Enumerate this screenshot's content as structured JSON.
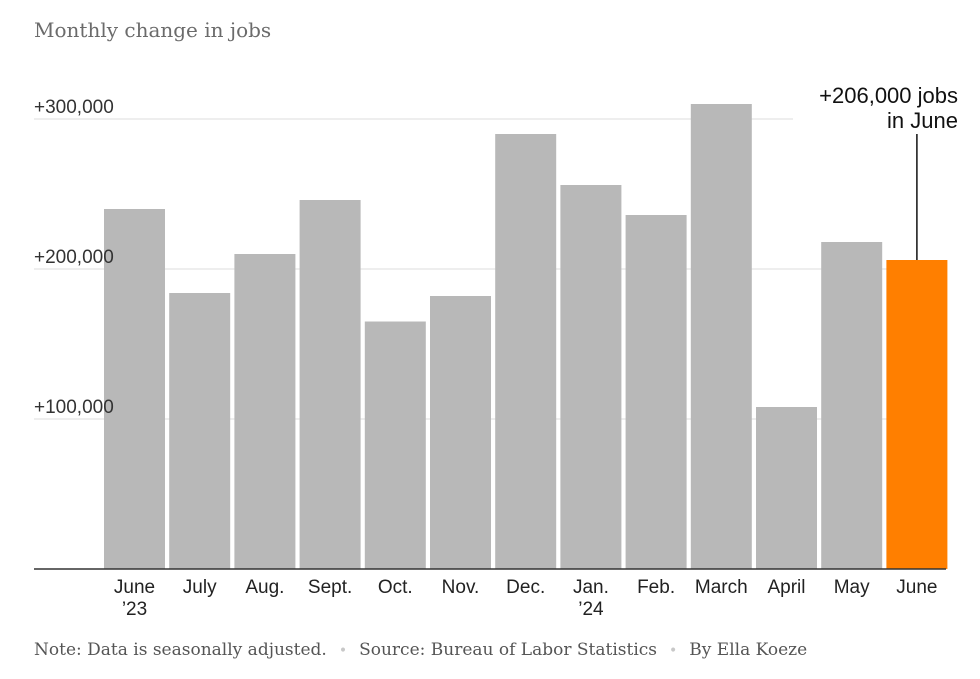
{
  "chart_data": {
    "type": "bar",
    "title": "Monthly change in jobs",
    "categories": [
      [
        "June",
        "’23"
      ],
      [
        "July"
      ],
      [
        "Aug."
      ],
      [
        "Sept."
      ],
      [
        "Oct."
      ],
      [
        "Nov."
      ],
      [
        "Dec."
      ],
      [
        "Jan.",
        "’24"
      ],
      [
        "Feb."
      ],
      [
        "March"
      ],
      [
        "April"
      ],
      [
        "May"
      ],
      [
        "June"
      ]
    ],
    "values": [
      240000,
      184000,
      210000,
      246000,
      165000,
      182000,
      290000,
      256000,
      236000,
      310000,
      108000,
      218000,
      206000
    ],
    "highlight_index": 12,
    "colors": {
      "bar": "#b8b8b8",
      "highlight": "#ff7f00",
      "grid": "#dddddd",
      "axis": "#333333"
    },
    "ylim": [
      0,
      300000
    ],
    "yticks": [
      {
        "value": 100000,
        "label": "+100,000"
      },
      {
        "value": 200000,
        "label": "+200,000"
      },
      {
        "value": 300000,
        "label": "+300,000"
      }
    ],
    "annotation": {
      "lines": [
        "+206,000 jobs",
        "in June"
      ],
      "index": 12
    },
    "grid": true,
    "xlabel": "",
    "ylabel": ""
  },
  "footer": {
    "note": "Note: Data is seasonally adjusted.",
    "source": "Source: Bureau of Labor Statistics",
    "byline": "By Ella Koeze"
  }
}
